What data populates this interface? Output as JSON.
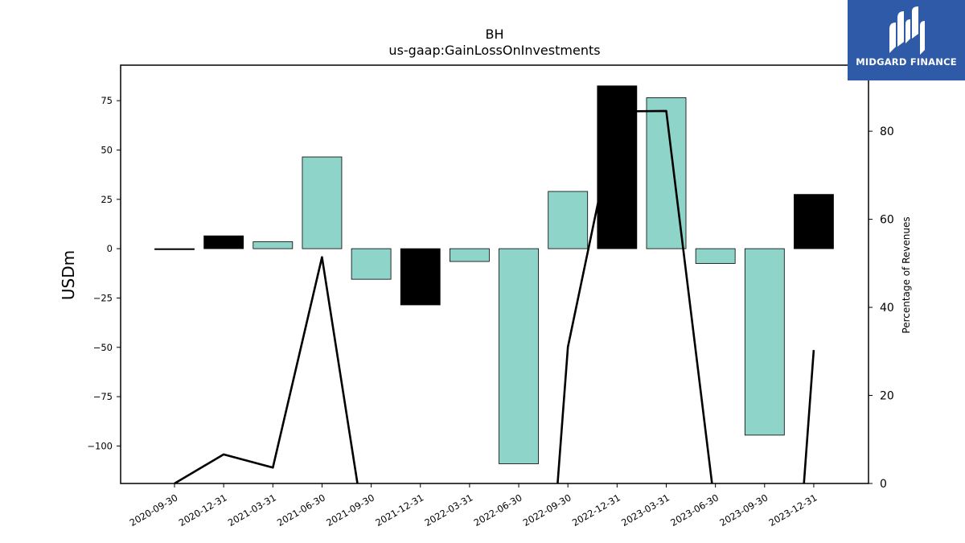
{
  "chart_data": {
    "type": "bar",
    "title": "BH",
    "subtitle": "us-gaap:GainLossOnInvestments",
    "ylabel": "USDm",
    "y2label": "Percentage of Revenues",
    "ylim": [
      -119,
      93
    ],
    "y2lim": [
      0,
      95
    ],
    "yticks": [
      75,
      50,
      25,
      0,
      -25,
      -50,
      -75,
      -100
    ],
    "y2ticks": [
      0,
      20,
      40,
      60,
      80
    ],
    "categories": [
      "2020-09-30",
      "2020-12-31",
      "2021-03-31",
      "2021-06-30",
      "2021-09-30",
      "2021-12-31",
      "2022-03-31",
      "2022-06-30",
      "2022-09-30",
      "2022-12-31",
      "2023-03-31",
      "2023-06-30",
      "2023-09-30",
      "2023-12-31"
    ],
    "series": [
      {
        "kind": "bar",
        "values": [
          -0.5,
          6.5,
          3.5,
          46.5,
          -15.5,
          -28.5,
          -6.5,
          -109,
          29,
          82.5,
          76.5,
          -7.5,
          -94.5,
          27.5
        ],
        "colors": [
          "#000000",
          "#000000",
          "#8fd4c8",
          "#8fd4c8",
          "#8fd4c8",
          "#000000",
          "#8fd4c8",
          "#8fd4c8",
          "#8fd4c8",
          "#000000",
          "#8fd4c8",
          "#8fd4c8",
          "#8fd4c8",
          "#000000"
        ]
      },
      {
        "kind": "line",
        "axis": "right",
        "color": "#000000",
        "points": [
          [
            0,
            0
          ],
          [
            1,
            6.6
          ],
          [
            2,
            3.6
          ],
          [
            3,
            51.4
          ],
          [
            3.72,
            0
          ],
          [
            null,
            null
          ],
          [
            7.79,
            0
          ],
          [
            8,
            31.0
          ],
          [
            9,
            84.5
          ],
          [
            10,
            84.6
          ],
          [
            10.93,
            0
          ],
          [
            null,
            null
          ],
          [
            12.8,
            0
          ],
          [
            13,
            30.3
          ]
        ]
      }
    ]
  },
  "logo": {
    "text": "MIDGARD FINANCE"
  }
}
